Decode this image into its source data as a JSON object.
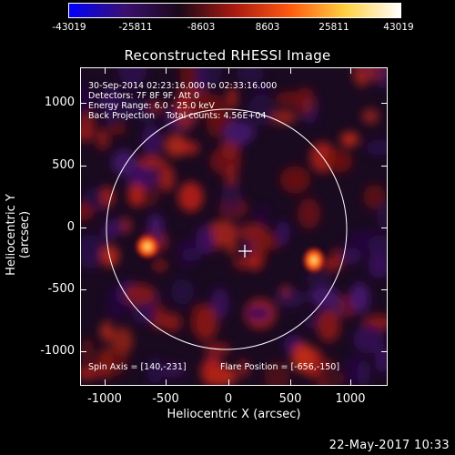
{
  "colorbar": {
    "labels": [
      "-43019",
      "-25811",
      "-8603",
      "8603",
      "25811",
      "43019"
    ]
  },
  "title": "Reconstructed RHESSI Image",
  "info": {
    "line1": "30-Sep-2014 02:23:16.000 to 02:33:16.000",
    "line2": "Detectors: 7F 8F 9F, Att 0",
    "line3": "Energy Range: 6.0 - 25.0 keV",
    "line4": "Back Projection    Total counts: 4.56E+04",
    "spin_axis": "Spin Axis = [140,-231]",
    "flare_position": "Flare Position = [-656,-150]"
  },
  "axes": {
    "xlabel": "Heliocentric X (arcsec)",
    "ylabel": "Heliocentric Y (arcsec)",
    "xticks": [
      "-1000",
      "-500",
      "0",
      "500",
      "1000"
    ],
    "yticks": [
      "1000",
      "500",
      "0",
      "-500",
      "-1000"
    ]
  },
  "timestamp": "22-May-2017 10:33",
  "colors": {
    "colormap": [
      "#0000ff",
      "#3a1070",
      "#1a0818",
      "#aa1a10",
      "#ff5a10",
      "#ffd040",
      "#ffffff"
    ],
    "limb_circle": "#ffffff"
  }
}
